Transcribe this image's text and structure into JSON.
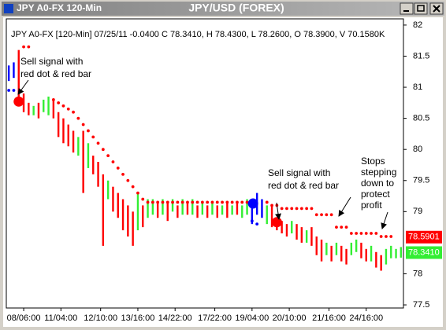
{
  "window": {
    "title": "JPY A0-FX 120-Min"
  },
  "chart_data": {
    "type": "ohlc",
    "title": "JPY/USD (FOREX)",
    "subtitle": "JPY A0-FX [120-Min] 07/25/11  -0.0400 C 78.3410, H 78.4300, L 78.2600, O 78.3900, V 70.1580K",
    "xlim": [
      0,
      80
    ],
    "xticks": [
      {
        "value": 3.5,
        "label": "08/06:00"
      },
      {
        "value": 11,
        "label": "11/04:00"
      },
      {
        "value": 19,
        "label": "12/10:00"
      },
      {
        "value": 26.5,
        "label": "13/16:00"
      },
      {
        "value": 34,
        "label": "14/22:00"
      },
      {
        "value": 42,
        "label": "17/22:00"
      },
      {
        "value": 49.5,
        "label": "19/04:00"
      },
      {
        "value": 57,
        "label": "20/10:00"
      },
      {
        "value": 65,
        "label": "21/16:00"
      },
      {
        "value": 72.5,
        "label": "24/16:00"
      }
    ],
    "ylim": [
      77.45,
      82.1
    ],
    "yticks": [
      82,
      81.5,
      81,
      80.5,
      80,
      79.5,
      79,
      78,
      77.5
    ],
    "bars": {
      "high": [
        81.35,
        81.4,
        81.6,
        80.9,
        80.75,
        80.7,
        80.75,
        80.8,
        80.85,
        80.8,
        80.6,
        80.5,
        80.4,
        80.3,
        80.2,
        80.3,
        80.1,
        79.9,
        79.8,
        79.6,
        79.5,
        79.4,
        79.3,
        79.2,
        79.1,
        79.0,
        79.3,
        79.1,
        79.2,
        79.2,
        79.15,
        79.2,
        79.15,
        79.2,
        79.1,
        79.2,
        79.15,
        79.2,
        79.1,
        79.15,
        79.1,
        79.15,
        79.1,
        79.1,
        79.15,
        79.1,
        79.15,
        79.1,
        79.2,
        79.15,
        79.3,
        79.2,
        79.1,
        79.1,
        78.9,
        78.85,
        78.8,
        78.85,
        78.8,
        78.75,
        78.7,
        78.75,
        78.6,
        78.55,
        78.5,
        78.45,
        78.5,
        78.45,
        78.4,
        78.5,
        78.55,
        78.5,
        78.4,
        78.45,
        78.35,
        78.3,
        78.4,
        78.45,
        78.4,
        78.43
      ],
      "low": [
        81.1,
        81.15,
        80.7,
        80.6,
        80.55,
        80.55,
        80.5,
        80.6,
        80.55,
        80.5,
        80.2,
        80.1,
        80.05,
        79.95,
        79.9,
        79.3,
        79.7,
        79.6,
        79.4,
        78.45,
        79.2,
        79.0,
        78.9,
        78.7,
        78.6,
        78.45,
        78.7,
        78.75,
        78.9,
        78.95,
        78.9,
        78.95,
        78.85,
        79.0,
        78.9,
        78.95,
        78.95,
        78.95,
        78.9,
        78.95,
        78.9,
        78.95,
        78.9,
        78.95,
        78.9,
        78.95,
        78.95,
        78.9,
        78.95,
        78.8,
        78.95,
        78.9,
        78.8,
        78.75,
        78.7,
        78.65,
        78.6,
        78.65,
        78.55,
        78.5,
        78.5,
        78.45,
        78.3,
        78.2,
        78.3,
        78.2,
        78.3,
        78.2,
        78.15,
        78.3,
        78.35,
        78.25,
        78.2,
        78.2,
        78.1,
        78.05,
        78.15,
        78.25,
        78.25,
        78.26
      ],
      "colors": [
        "#0000ff",
        "#0000ff",
        "#ff0000",
        "#ff0000",
        "#ff0000",
        "#33ee33",
        "#ff0000",
        "#33ee33",
        "#33ee33",
        "#ff0000",
        "#ff0000",
        "#ff0000",
        "#ff0000",
        "#ff0000",
        "#33ee33",
        "#ff0000",
        "#33ee33",
        "#ff0000",
        "#ff0000",
        "#ff0000",
        "#33ee33",
        "#ff0000",
        "#ff0000",
        "#ff0000",
        "#ff0000",
        "#ff0000",
        "#33ee33",
        "#ff0000",
        "#33ee33",
        "#33ee33",
        "#ff0000",
        "#33ee33",
        "#ff0000",
        "#33ee33",
        "#ff0000",
        "#33ee33",
        "#ff0000",
        "#33ee33",
        "#ff0000",
        "#33ee33",
        "#ff0000",
        "#33ee33",
        "#ff0000",
        "#33ee33",
        "#ff0000",
        "#33ee33",
        "#ff0000",
        "#33ee33",
        "#33ee33",
        "#0000ff",
        "#0000ff",
        "#0000ff",
        "#33ee33",
        "#ff0000",
        "#ff0000",
        "#ff0000",
        "#ff0000",
        "#33ee33",
        "#ff0000",
        "#ff0000",
        "#33ee33",
        "#ff0000",
        "#ff0000",
        "#ff0000",
        "#33ee33",
        "#ff0000",
        "#33ee33",
        "#ff0000",
        "#ff0000",
        "#33ee33",
        "#33ee33",
        "#ff0000",
        "#ff0000",
        "#33ee33",
        "#ff0000",
        "#ff0000",
        "#33ee33",
        "#33ee33",
        "#33ee33",
        "#33ee33"
      ]
    },
    "stops": {
      "values": [
        80.95,
        80.95,
        null,
        81.65,
        81.65,
        null,
        null,
        null,
        null,
        80.8,
        80.75,
        80.7,
        80.65,
        80.6,
        80.5,
        80.4,
        80.3,
        80.2,
        80.1,
        80.0,
        79.9,
        79.8,
        79.7,
        79.6,
        79.5,
        79.4,
        79.3,
        79.2,
        79.15,
        79.15,
        79.15,
        79.15,
        79.15,
        79.15,
        79.15,
        79.15,
        79.15,
        79.15,
        79.15,
        79.15,
        79.15,
        79.15,
        79.15,
        79.15,
        79.15,
        79.15,
        79.15,
        79.15,
        79.15,
        78.85,
        78.8,
        null,
        79.15,
        79.1,
        79.1,
        79.05,
        79.05,
        79.05,
        79.05,
        79.05,
        79.05,
        79.05,
        78.95,
        78.95,
        78.95,
        78.95,
        78.75,
        78.75,
        78.75,
        78.65,
        78.65,
        78.65,
        78.65,
        78.65,
        78.65,
        78.6,
        78.6,
        78.6,
        null,
        null
      ],
      "colors": [
        "#0000ff",
        "#0000ff",
        null,
        "#ff0000",
        "#ff0000",
        null,
        null,
        null,
        null,
        "#ff0000",
        "#ff0000",
        "#ff0000",
        "#ff0000",
        "#ff0000",
        "#ff0000",
        "#ff0000",
        "#ff0000",
        "#ff0000",
        "#ff0000",
        "#ff0000",
        "#ff0000",
        "#ff0000",
        "#ff0000",
        "#ff0000",
        "#ff0000",
        "#ff0000",
        "#ff0000",
        "#ff0000",
        "#ff0000",
        "#ff0000",
        "#ff0000",
        "#ff0000",
        "#ff0000",
        "#ff0000",
        "#ff0000",
        "#ff0000",
        "#ff0000",
        "#ff0000",
        "#ff0000",
        "#ff0000",
        "#ff0000",
        "#ff0000",
        "#ff0000",
        "#ff0000",
        "#ff0000",
        "#ff0000",
        "#ff0000",
        "#ff0000",
        "#ff0000",
        "#0000ff",
        "#0000ff",
        null,
        "#ff0000",
        "#ff0000",
        "#ff0000",
        "#ff0000",
        "#ff0000",
        "#ff0000",
        "#ff0000",
        "#ff0000",
        "#ff0000",
        "#ff0000",
        "#ff0000",
        "#ff0000",
        "#ff0000",
        "#ff0000",
        "#ff0000",
        "#ff0000",
        "#ff0000",
        "#ff0000",
        "#ff0000",
        "#ff0000",
        "#ff0000",
        "#ff0000",
        "#ff0000",
        "#ff0000",
        "#ff0000",
        "#ff0000",
        null,
        null
      ]
    },
    "signals": {
      "x": [
        2.5,
        49.7,
        54.5
      ],
      "values": [
        80.77,
        79.13,
        78.83
      ],
      "colors": [
        "#ff0000",
        "#0000ff",
        "#ff0000"
      ]
    },
    "price_labels": [
      {
        "value": 78.5901,
        "label": "78.5901",
        "color": "#ff0000"
      },
      {
        "value": 78.341,
        "label": "78.3410",
        "color": "#33ee33"
      }
    ],
    "annotations": [
      {
        "lines": [
          "Sell signal with",
          "red dot & red bar"
        ]
      },
      {
        "lines": [
          "Sell signal with",
          "red dot & red bar"
        ]
      },
      {
        "lines": [
          "Stops",
          "stepping",
          "down to",
          "protect",
          "profit"
        ]
      }
    ]
  }
}
